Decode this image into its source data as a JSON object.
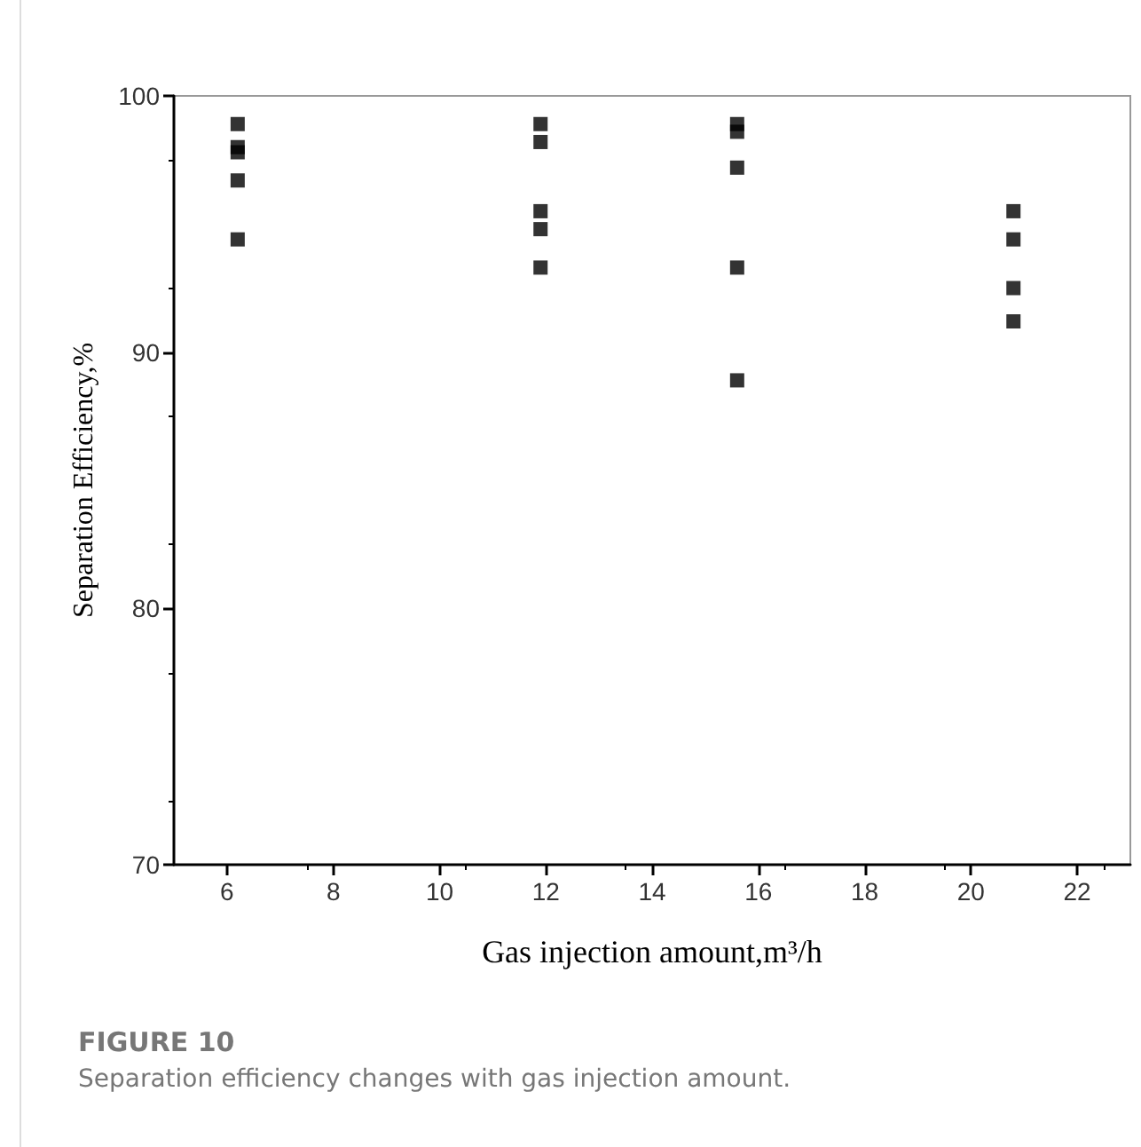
{
  "chart_data": {
    "type": "scatter",
    "xlabel": "Gas injection amount,m³/h",
    "ylabel": "Separation Efficiency,%",
    "x": [
      6.2,
      6.2,
      6.2,
      6.2,
      6.2,
      11.9,
      11.9,
      11.9,
      11.9,
      11.9,
      15.6,
      15.6,
      15.6,
      15.6,
      15.6,
      20.8,
      20.8,
      20.8,
      20.8
    ],
    "values": [
      98.9,
      98.0,
      97.8,
      96.7,
      94.4,
      98.9,
      98.2,
      95.5,
      94.8,
      93.3,
      98.9,
      98.6,
      97.2,
      93.3,
      88.9,
      95.5,
      94.4,
      92.5,
      91.2
    ],
    "color": "#000000",
    "marker": "square",
    "xlim": [
      5,
      23
    ],
    "xticks": [
      6,
      8,
      10,
      12,
      14,
      16,
      18,
      20,
      22
    ],
    "ylim": [
      70,
      100
    ],
    "yticks": [
      70,
      80,
      90,
      100
    ],
    "grid": false,
    "annotations": [
      "FIGURE 10",
      "Separation efficiency changes with gas injection amount."
    ]
  }
}
